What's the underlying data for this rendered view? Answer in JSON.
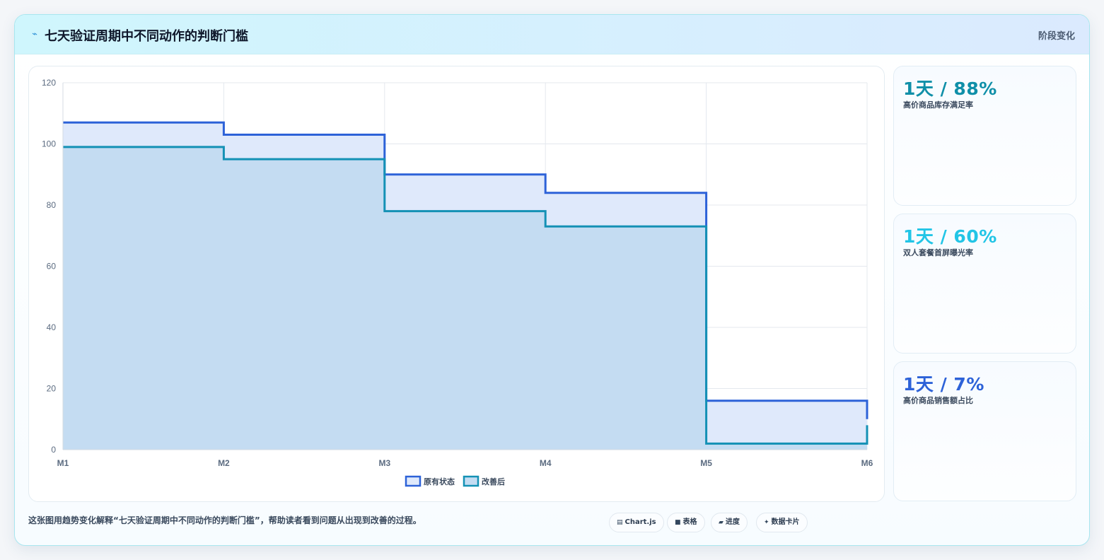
{
  "header": {
    "title": "七天验证周期中不同动作的判断门槛",
    "badge": "阶段变化",
    "icon": "lightning-icon"
  },
  "colors": {
    "series_original_line": "#2d62d8",
    "series_original_fill": "#dfe9fb",
    "series_improved_line": "#1491b5",
    "series_improved_fill": "#c4dcf2",
    "card1": "#0f8fa8",
    "card2": "#22c5e6",
    "card3": "#2d62d8"
  },
  "chart_data": {
    "type": "line",
    "stepped": true,
    "fill": true,
    "x": [
      "M1",
      "M2",
      "M3",
      "M4",
      "M5",
      "M6"
    ],
    "series": [
      {
        "name": "原有状态",
        "values": [
          107,
          103,
          90,
          84,
          16,
          10
        ]
      },
      {
        "name": "改善后",
        "values": [
          99,
          95,
          78,
          73,
          2,
          8
        ]
      }
    ],
    "ylim": [
      0,
      120
    ],
    "yticks": [
      0,
      20,
      40,
      60,
      80,
      100,
      120
    ],
    "grid": true,
    "legend": "bottom-center"
  },
  "cards": [
    {
      "value": "1天 / 88%",
      "label": "高价商品库存满足率"
    },
    {
      "value": "1天 / 60%",
      "label": "双人套餐首屏曝光率"
    },
    {
      "value": "1天 / 7%",
      "label": "高价商品销售额占比"
    }
  ],
  "footer": {
    "text": "这张图用趋势变化解释“七天验证周期中不同动作的判断门槛”，帮助读者看到问题从出现到改善的过程。",
    "chips": [
      {
        "icon": "chart-icon",
        "glyph": "▤",
        "label": "Chart.js"
      },
      {
        "icon": "table-icon",
        "glyph": "■",
        "label": "表格"
      },
      {
        "icon": "progress-icon",
        "glyph": "▰",
        "label": "进度"
      },
      {
        "icon": "sparkle-icon",
        "glyph": "✦",
        "label": "数据卡片"
      }
    ]
  }
}
